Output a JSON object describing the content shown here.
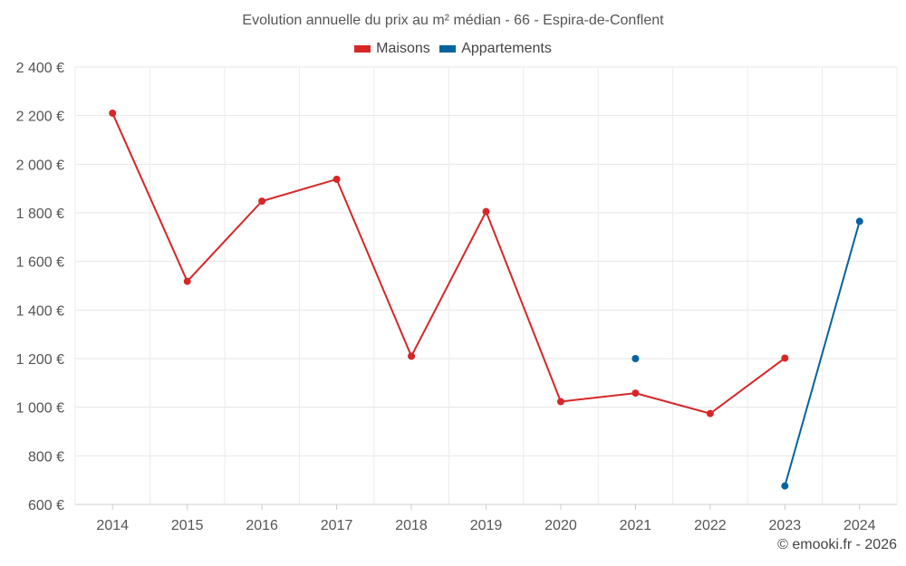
{
  "chart_data": {
    "type": "line",
    "title": "Evolution annuelle du prix au m² médian - 66 - Espira-de-Conflent",
    "categories": [
      "2014",
      "2015",
      "2016",
      "2017",
      "2018",
      "2019",
      "2020",
      "2021",
      "2022",
      "2023",
      "2024"
    ],
    "y_ticks": [
      600,
      800,
      1000,
      1200,
      1400,
      1600,
      1800,
      2000,
      2200,
      2400
    ],
    "y_tick_labels": [
      "600 €",
      "800 €",
      "1 000 €",
      "1 200 €",
      "1 400 €",
      "1 600 €",
      "1 800 €",
      "2 000 €",
      "2 200 €",
      "2 400 €"
    ],
    "ylim": [
      600,
      2400
    ],
    "xlabel": "",
    "ylabel": "",
    "grid": true,
    "legend_position": "top-center",
    "series": [
      {
        "name": "Maisons",
        "color": "#d62728",
        "values": [
          2210,
          1518,
          1848,
          1938,
          1210,
          1805,
          1023,
          1058,
          974,
          1202,
          null
        ]
      },
      {
        "name": "Appartements",
        "color": "#06639d",
        "values": [
          null,
          null,
          null,
          null,
          null,
          null,
          null,
          1200,
          null,
          676,
          1765
        ]
      }
    ]
  },
  "credit": "© emooki.fr - 2026"
}
